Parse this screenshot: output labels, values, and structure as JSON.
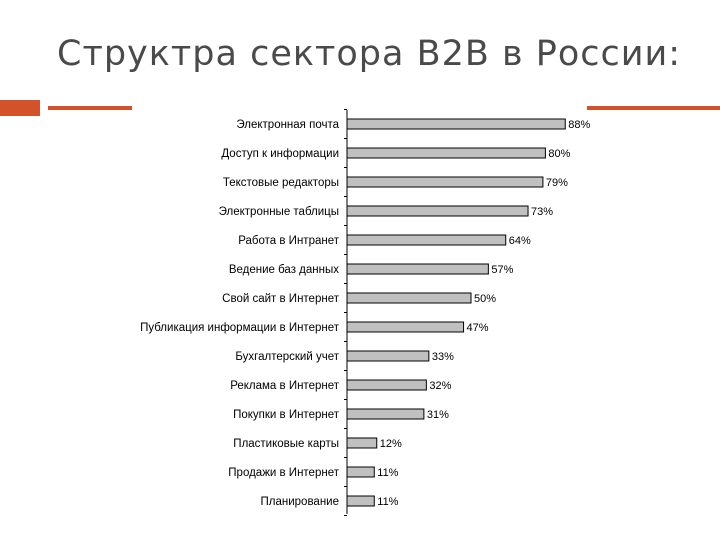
{
  "slide": {
    "title": "Структра сектора B2B в России:"
  },
  "chart_data": {
    "type": "bar",
    "orientation": "horizontal",
    "categories": [
      "Электронная почта",
      "Доступ к информации",
      "Текстовые редакторы",
      "Электронные таблицы",
      "Работа в Интранет",
      "Ведение баз данных",
      "Свой сайт в Интернет",
      "Публикация информации в Интернет",
      "Бухгалтерский учет",
      "Реклама в Интернет",
      "Покупки в Интернет",
      "Пластиковые карты",
      "Продажи в Интернет",
      "Планирование"
    ],
    "values": [
      88,
      80,
      79,
      73,
      64,
      57,
      50,
      47,
      33,
      32,
      31,
      12,
      11,
      11
    ],
    "value_labels": [
      "88%",
      "80%",
      "79%",
      "73%",
      "64%",
      "57%",
      "50%",
      "47%",
      "33%",
      "32%",
      "31%",
      "12%",
      "11%",
      "11%"
    ],
    "xlim": [
      0,
      100
    ],
    "grid": false,
    "legend": "none",
    "bar_color": "#c0c0c0",
    "bar_edge_color": "#000000"
  },
  "colors": {
    "accent": "#d2522a",
    "title": "#4a4a4a"
  }
}
